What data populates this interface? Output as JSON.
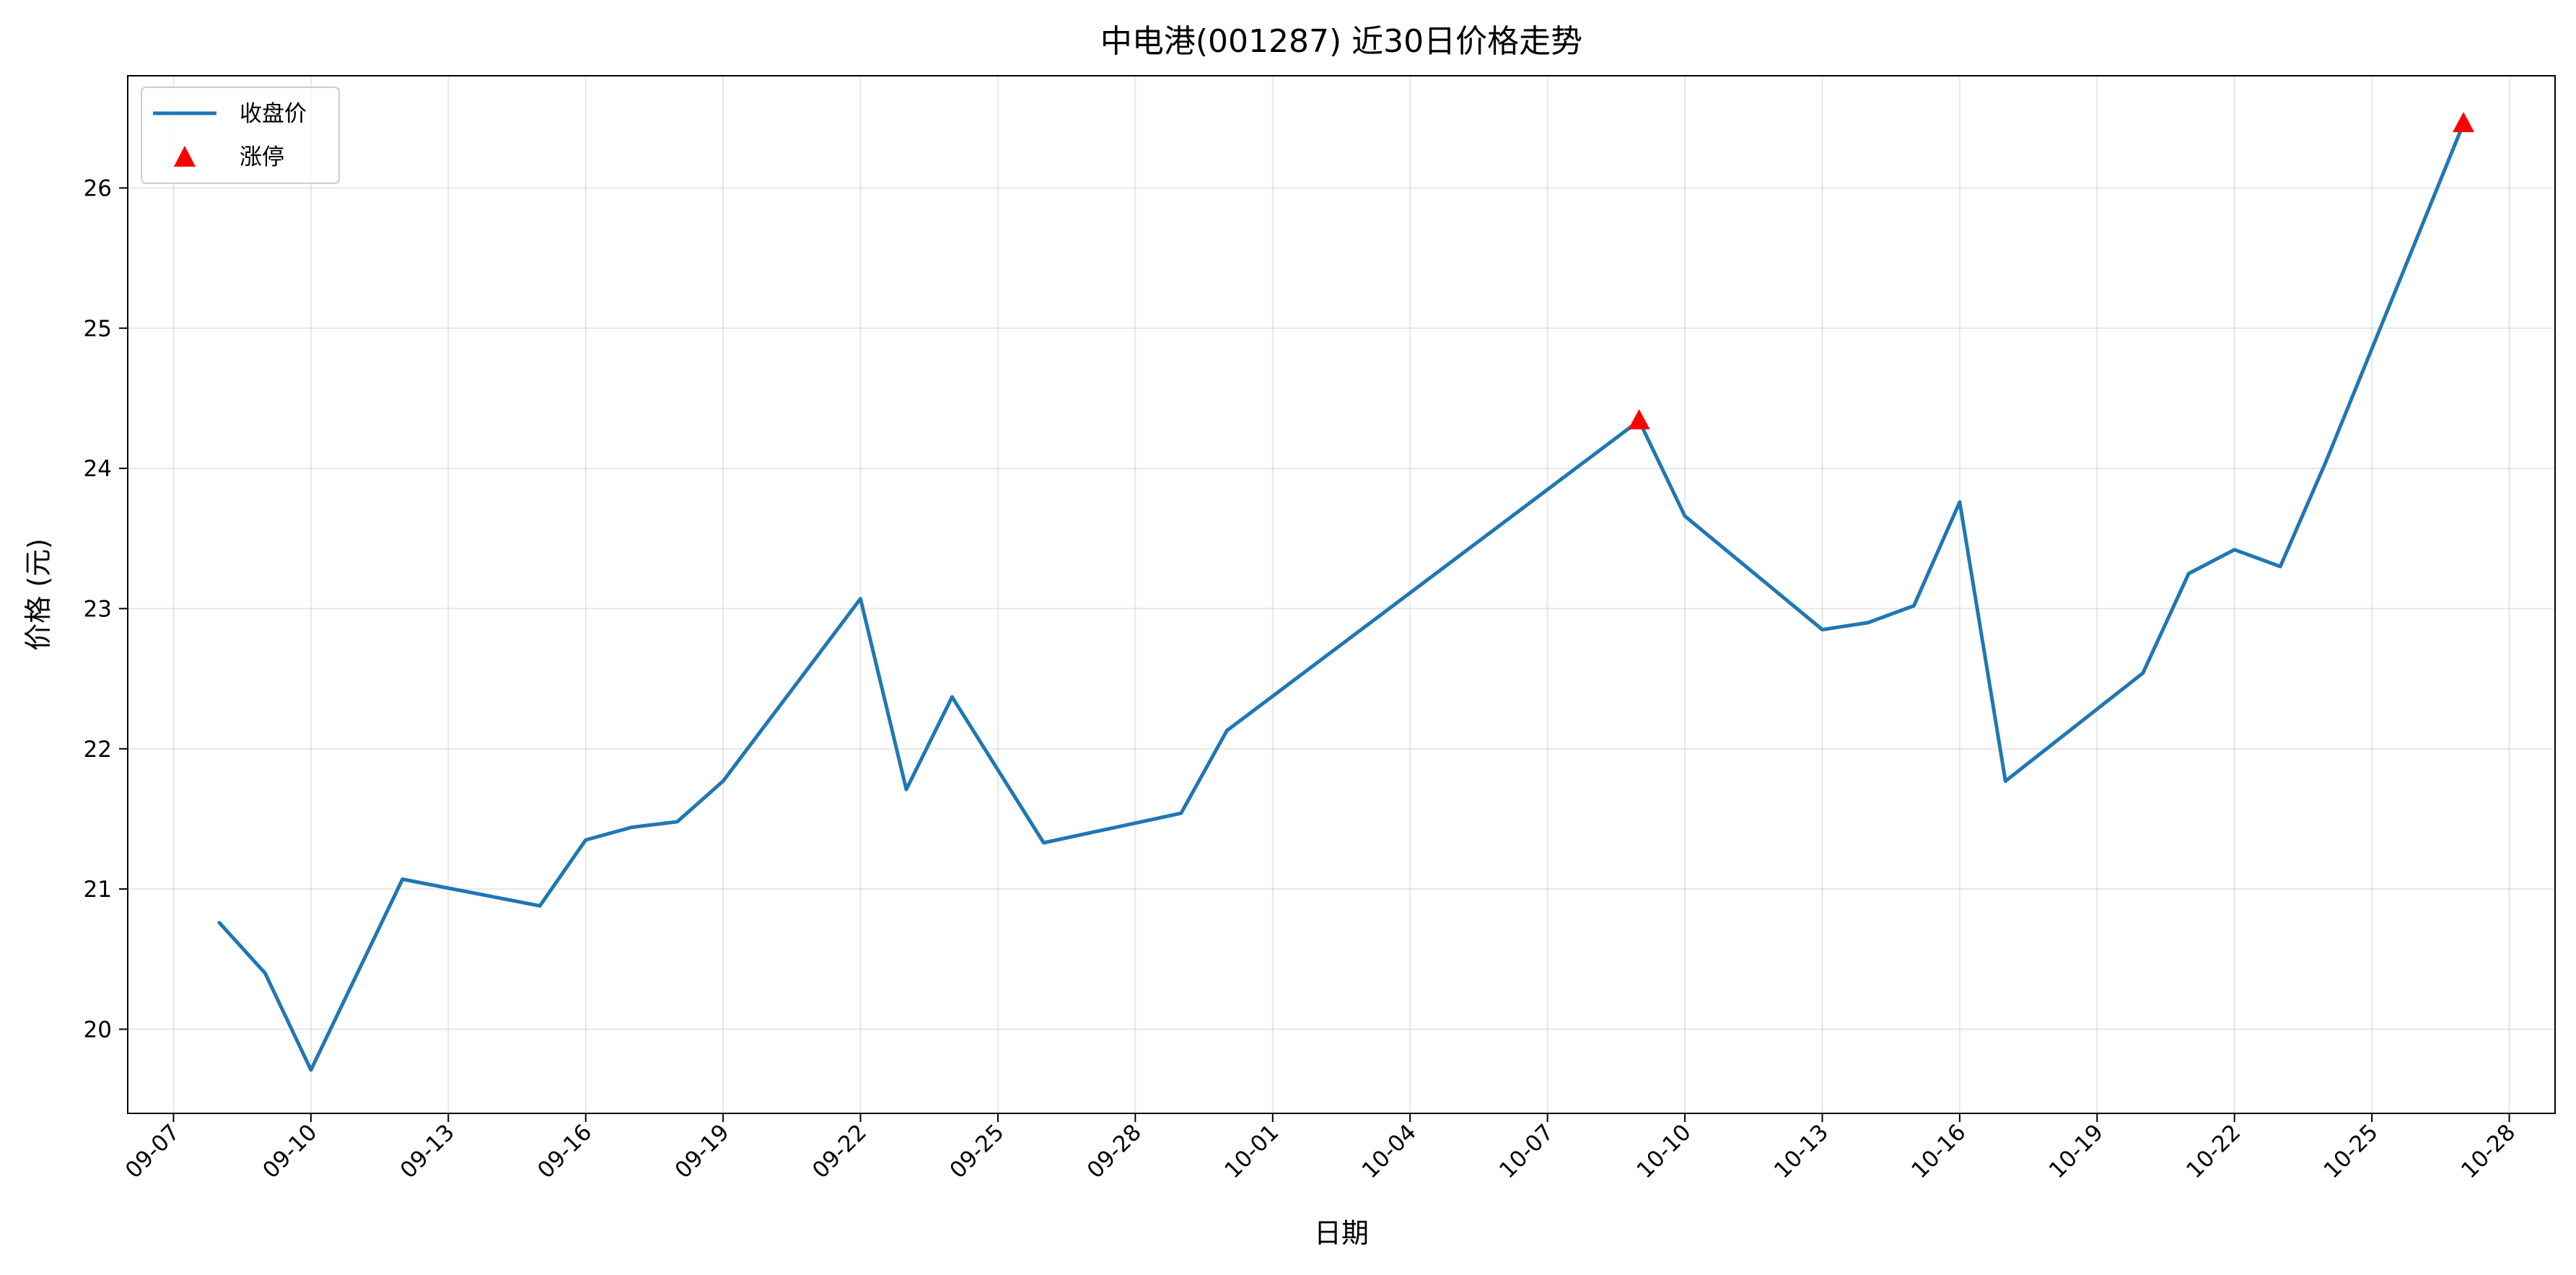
{
  "chart_data": {
    "type": "line",
    "title": "中电港(001287) 近30日价格走势",
    "xlabel": "日期",
    "ylabel": "价格 (元)",
    "grid": true,
    "legend_position": "top-left",
    "x_tick_labels": [
      "09-07",
      "09-10",
      "09-13",
      "09-16",
      "09-19",
      "09-22",
      "09-25",
      "09-28",
      "10-01",
      "10-04",
      "10-07",
      "10-10",
      "10-13",
      "10-16",
      "10-19",
      "10-22",
      "10-25",
      "10-28"
    ],
    "y_tick_labels": [
      "20",
      "21",
      "22",
      "23",
      "24",
      "25",
      "26"
    ],
    "xlim": [
      "09-06",
      "10-29"
    ],
    "ylim": [
      19.4,
      26.8
    ],
    "series": [
      {
        "name": "收盘价",
        "color": "#1f77b4",
        "x": [
          "09-08",
          "09-09",
          "09-10",
          "09-12",
          "09-15",
          "09-16",
          "09-17",
          "09-18",
          "09-19",
          "09-22",
          "09-23",
          "09-24",
          "09-26",
          "09-29",
          "09-30",
          "10-09",
          "10-10",
          "10-13",
          "10-14",
          "10-15",
          "10-16",
          "10-17",
          "10-20",
          "10-21",
          "10-22",
          "10-23",
          "10-24",
          "10-27"
        ],
        "values": [
          20.76,
          20.4,
          19.71,
          21.07,
          20.88,
          21.35,
          21.44,
          21.48,
          21.77,
          23.07,
          21.71,
          22.37,
          21.33,
          21.54,
          22.13,
          24.34,
          23.66,
          22.85,
          22.9,
          23.02,
          23.76,
          21.77,
          22.54,
          23.25,
          23.42,
          23.3,
          24.05,
          26.46
        ]
      },
      {
        "name": "涨停",
        "color": "#ff0000",
        "marker": "triangle",
        "x": [
          "10-09",
          "10-27"
        ],
        "values": [
          24.34,
          26.46
        ]
      }
    ]
  }
}
